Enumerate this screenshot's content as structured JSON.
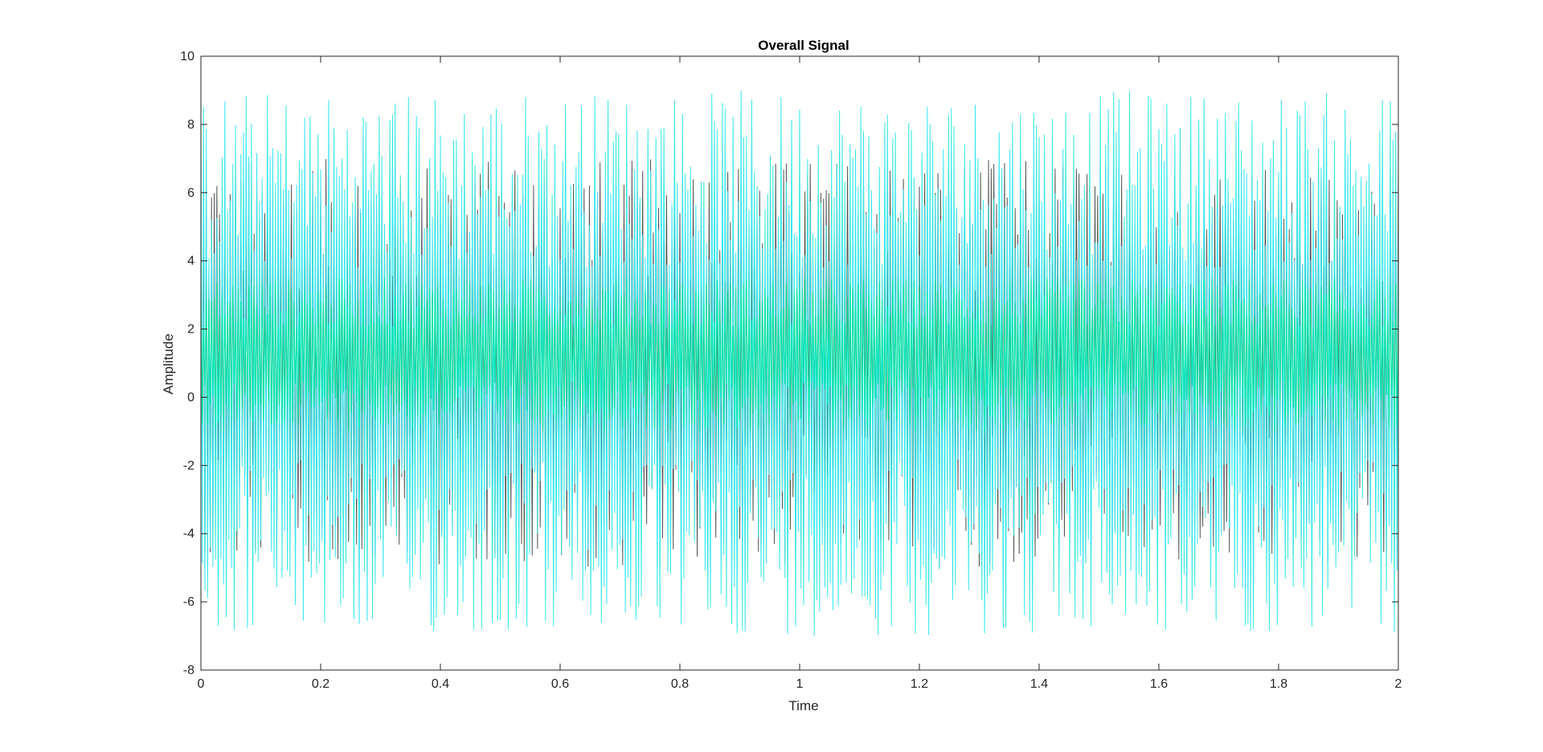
{
  "chart_data": {
    "type": "line",
    "title": "Overall Signal",
    "xlabel": "Time",
    "ylabel": "Amplitude",
    "xlim": [
      0,
      2
    ],
    "ylim": [
      -8,
      10
    ],
    "xticks": [
      0,
      0.2,
      0.4,
      0.6,
      0.8,
      1,
      1.2,
      1.4,
      1.6,
      1.8,
      2
    ],
    "xtick_labels": [
      "0",
      "0.2",
      "0.4",
      "0.6",
      "0.8",
      "1",
      "1.2",
      "1.4",
      "1.6",
      "1.8",
      "2"
    ],
    "yticks": [
      -8,
      -6,
      -4,
      -2,
      0,
      2,
      4,
      6,
      8,
      10
    ],
    "ytick_labels": [
      "-8",
      "-6",
      "-4",
      "-2",
      "0",
      "2",
      "4",
      "6",
      "8",
      "10"
    ],
    "grid": false,
    "legend": "none",
    "series": [
      {
        "color": "#555555",
        "approx_range": [
          -5.0,
          7.0
        ]
      },
      {
        "color": "#33e8ee",
        "approx_range": [
          -7.0,
          9.0
        ]
      },
      {
        "color": "#00e5a0",
        "approx_range": [
          -1.0,
          3.5
        ]
      }
    ]
  }
}
